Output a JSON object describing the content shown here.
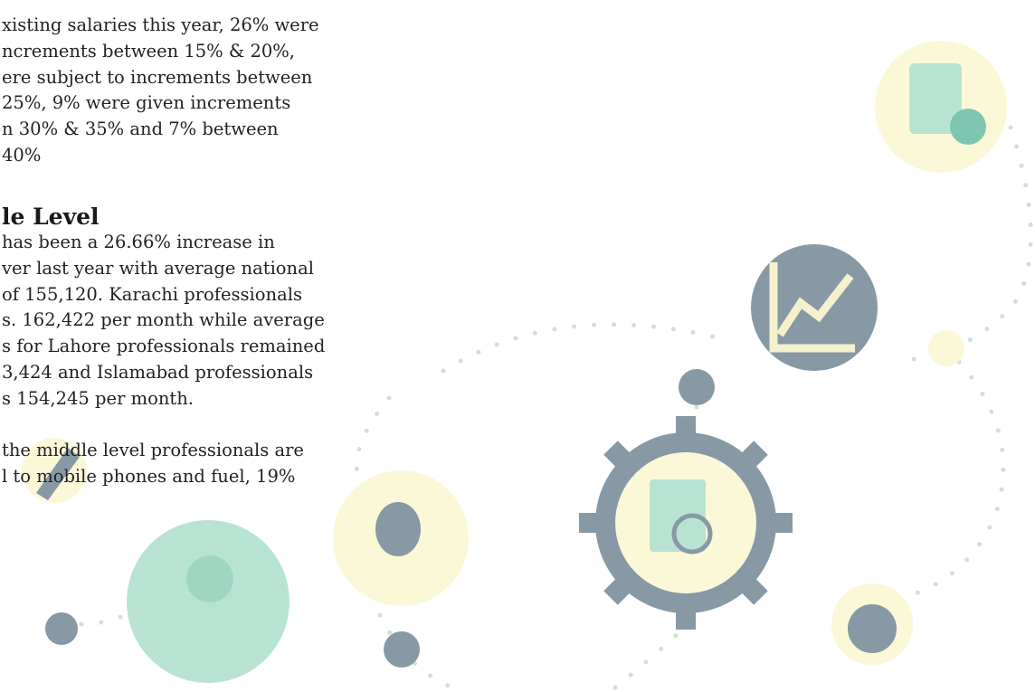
{
  "paragraph_1": [
    "xisting salaries this year, 26% were",
    "ncrements between 15% & 20%,",
    "ere subject to increments between",
    "25%, 9% were given increments",
    "n 30% & 35% and 7% between",
    "40%"
  ],
  "heading": "le Level",
  "paragraph_2": [
    "has been a 26.66% increase in",
    "ver last year with average national",
    "of 155,120. Karachi professionals",
    "s. 162,422 per month while average",
    "s for Lahore professionals remained",
    "3,424 and Islamabad professionals",
    "s 154,245 per month."
  ],
  "paragraph_3": [
    "the middle level professionals are",
    "l to mobile phones and fuel, 19%"
  ]
}
